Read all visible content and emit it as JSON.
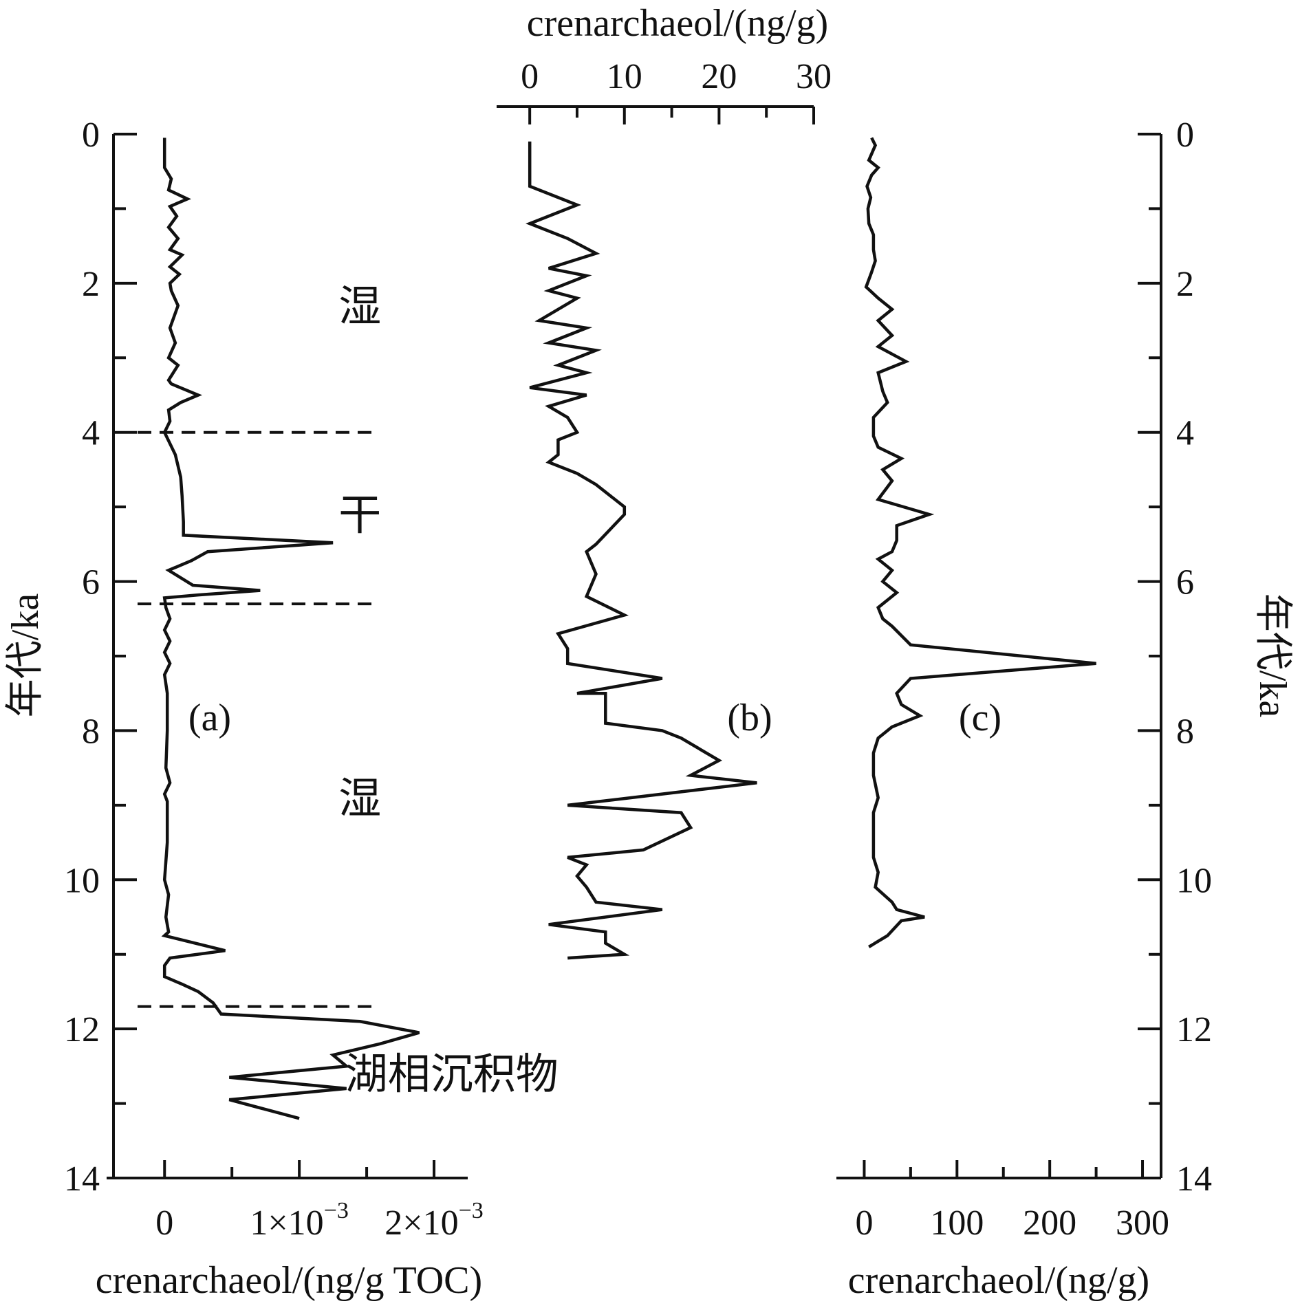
{
  "chart_data": [
    {
      "id": "a",
      "type": "line",
      "panel_label": "(a)",
      "xlabel": "crenarchaeol/(ng/g TOC)",
      "ylabel": "年代/ka",
      "xlim": [
        -0.00043,
        0.00225
      ],
      "ylim": [
        0,
        14
      ],
      "y_inverted": true,
      "x_ticks": [
        {
          "value": 0,
          "label": "0"
        },
        {
          "value": 0.001,
          "label": "1×10⁻³"
        },
        {
          "value": 0.002,
          "label": "2×10⁻³"
        }
      ],
      "y_ticks": [
        0,
        2,
        4,
        6,
        8,
        10,
        12,
        14
      ],
      "annotations": [
        {
          "text": "湿",
          "x": 0.00145,
          "y": 2.3
        },
        {
          "text": "干",
          "x": 0.00145,
          "y": 5.1
        },
        {
          "text": "湿",
          "x": 0.00145,
          "y": 8.9
        },
        {
          "text": "湖相沉积物",
          "x": 0.00157,
          "y": 12.6
        }
      ],
      "boundaries": [
        4.0,
        6.3,
        11.7
      ],
      "series": [
        {
          "points": [
            [
              0.0,
              0.05
            ],
            [
              0.0,
              0.45
            ],
            [
              5e-05,
              0.6
            ],
            [
              3e-05,
              0.75
            ],
            [
              0.00017,
              0.87
            ],
            [
              4e-05,
              0.97
            ],
            [
              9e-05,
              1.1
            ],
            [
              3e-05,
              1.25
            ],
            [
              0.0001,
              1.4
            ],
            [
              4e-05,
              1.55
            ],
            [
              0.00013,
              1.62
            ],
            [
              4e-05,
              1.78
            ],
            [
              0.00011,
              1.88
            ],
            [
              4e-05,
              2.0
            ],
            [
              5e-05,
              2.1
            ],
            [
              0.0001,
              2.3
            ],
            [
              4e-05,
              2.6
            ],
            [
              8e-05,
              2.8
            ],
            [
              3e-05,
              3.0
            ],
            [
              0.0001,
              3.1
            ],
            [
              3e-05,
              3.3
            ],
            [
              5e-05,
              3.35
            ],
            [
              0.00025,
              3.5
            ],
            [
              0.00012,
              3.6
            ],
            [
              3e-05,
              3.7
            ],
            [
              4e-05,
              3.85
            ],
            [
              0.0,
              4.0
            ],
            [
              8e-05,
              4.3
            ],
            [
              0.00012,
              4.6
            ],
            [
              0.00013,
              4.85
            ],
            [
              0.00014,
              5.2
            ],
            [
              0.00014,
              5.38
            ],
            [
              0.00125,
              5.48
            ],
            [
              0.00032,
              5.6
            ],
            [
              0.0002,
              5.72
            ],
            [
              3e-05,
              5.85
            ],
            [
              0.00021,
              6.05
            ],
            [
              0.00071,
              6.12
            ],
            [
              0.00025,
              6.18
            ],
            [
              0.0,
              6.22
            ],
            [
              1e-05,
              6.35
            ],
            [
              4e-05,
              6.5
            ],
            [
              0.0,
              6.65
            ],
            [
              4e-05,
              6.8
            ],
            [
              0.0,
              6.95
            ],
            [
              4e-05,
              7.1
            ],
            [
              0.0,
              7.25
            ],
            [
              2e-05,
              7.5
            ],
            [
              2e-05,
              8.0
            ],
            [
              1e-05,
              8.5
            ],
            [
              4e-05,
              8.7
            ],
            [
              0.0,
              8.85
            ],
            [
              2e-05,
              8.95
            ],
            [
              2e-05,
              9.5
            ],
            [
              0.0,
              10.0
            ],
            [
              3e-05,
              10.2
            ],
            [
              1e-05,
              10.5
            ],
            [
              3e-05,
              10.7
            ],
            [
              0.0,
              10.75
            ],
            [
              0.00045,
              10.95
            ],
            [
              4e-05,
              11.05
            ],
            [
              0.0,
              11.15
            ],
            [
              0.0,
              11.3
            ],
            [
              0.00013,
              11.4
            ],
            [
              0.00025,
              11.5
            ],
            [
              0.00036,
              11.65
            ],
            [
              0.00042,
              11.8
            ],
            [
              0.00145,
              11.9
            ],
            [
              0.00189,
              12.05
            ],
            [
              0.0016,
              12.2
            ],
            [
              0.00125,
              12.35
            ],
            [
              0.00135,
              12.5
            ],
            [
              0.00048,
              12.65
            ],
            [
              0.00135,
              12.8
            ],
            [
              0.00048,
              12.95
            ],
            [
              0.001,
              13.2
            ]
          ]
        }
      ]
    },
    {
      "id": "b",
      "type": "line",
      "panel_label": "(b)",
      "xlabel": "crenarchaeol/(ng/g)",
      "xlim": [
        -3.5,
        30
      ],
      "ylim": [
        0,
        14
      ],
      "y_inverted": true,
      "x_ticks": [
        {
          "value": 0,
          "label": "0"
        },
        {
          "value": 10,
          "label": "10"
        },
        {
          "value": 20,
          "label": "20"
        },
        {
          "value": 30,
          "label": "30"
        }
      ],
      "series": [
        {
          "points": [
            [
              0,
              0.1
            ],
            [
              0,
              0.7
            ],
            [
              5,
              0.95
            ],
            [
              0,
              1.2
            ],
            [
              4,
              1.4
            ],
            [
              7,
              1.6
            ],
            [
              2,
              1.8
            ],
            [
              6,
              1.9
            ],
            [
              2,
              2.1
            ],
            [
              5,
              2.2
            ],
            [
              1,
              2.5
            ],
            [
              6,
              2.6
            ],
            [
              2,
              2.8
            ],
            [
              7,
              2.9
            ],
            [
              3,
              3.1
            ],
            [
              6,
              3.2
            ],
            [
              0,
              3.4
            ],
            [
              6,
              3.5
            ],
            [
              2,
              3.65
            ],
            [
              4,
              3.8
            ],
            [
              5,
              4.0
            ],
            [
              3,
              4.1
            ],
            [
              3,
              4.3
            ],
            [
              2,
              4.4
            ],
            [
              5,
              4.55
            ],
            [
              7,
              4.7
            ],
            [
              10,
              5.0
            ],
            [
              10,
              5.1
            ],
            [
              7,
              5.5
            ],
            [
              6,
              5.6
            ],
            [
              7,
              5.9
            ],
            [
              6,
              6.2
            ],
            [
              10,
              6.45
            ],
            [
              3,
              6.7
            ],
            [
              4,
              6.9
            ],
            [
              4,
              7.1
            ],
            [
              14,
              7.3
            ],
            [
              5,
              7.5
            ],
            [
              8,
              7.5
            ],
            [
              8,
              7.9
            ],
            [
              14,
              8.0
            ],
            [
              16,
              8.1
            ],
            [
              20,
              8.4
            ],
            [
              17,
              8.6
            ],
            [
              24,
              8.7
            ],
            [
              4,
              9.0
            ],
            [
              16,
              9.1
            ],
            [
              17,
              9.3
            ],
            [
              12,
              9.6
            ],
            [
              4,
              9.7
            ],
            [
              6,
              9.8
            ],
            [
              5,
              9.95
            ],
            [
              6,
              10.1
            ],
            [
              7,
              10.3
            ],
            [
              14,
              10.4
            ],
            [
              2,
              10.6
            ],
            [
              8,
              10.7
            ],
            [
              8,
              10.85
            ],
            [
              10,
              11.0
            ],
            [
              4,
              11.05
            ]
          ]
        }
      ]
    },
    {
      "id": "c",
      "type": "line",
      "panel_label": "(c)",
      "xlabel": "crenarchaeol/(ng/g)",
      "ylabel": "年代/ka",
      "xlim": [
        -30,
        320
      ],
      "ylim": [
        0,
        14
      ],
      "y_inverted": true,
      "x_ticks": [
        {
          "value": 0,
          "label": "0"
        },
        {
          "value": 100,
          "label": "100"
        },
        {
          "value": 200,
          "label": "200"
        },
        {
          "value": 300,
          "label": "300"
        }
      ],
      "y_ticks": [
        0,
        2,
        4,
        6,
        8,
        10,
        12,
        14
      ],
      "series": [
        {
          "points": [
            [
              8,
              0.05
            ],
            [
              12,
              0.15
            ],
            [
              5,
              0.35
            ],
            [
              15,
              0.45
            ],
            [
              8,
              0.55
            ],
            [
              3,
              0.7
            ],
            [
              7,
              0.85
            ],
            [
              4,
              1.0
            ],
            [
              5,
              1.2
            ],
            [
              10,
              1.35
            ],
            [
              10,
              1.55
            ],
            [
              12,
              1.7
            ],
            [
              8,
              1.85
            ],
            [
              2,
              2.05
            ],
            [
              15,
              2.2
            ],
            [
              30,
              2.35
            ],
            [
              15,
              2.5
            ],
            [
              30,
              2.7
            ],
            [
              15,
              2.85
            ],
            [
              45,
              3.05
            ],
            [
              15,
              3.2
            ],
            [
              20,
              3.45
            ],
            [
              25,
              3.6
            ],
            [
              10,
              3.8
            ],
            [
              10,
              4.05
            ],
            [
              15,
              4.2
            ],
            [
              40,
              4.35
            ],
            [
              20,
              4.5
            ],
            [
              30,
              4.65
            ],
            [
              15,
              4.9
            ],
            [
              70,
              5.1
            ],
            [
              35,
              5.25
            ],
            [
              35,
              5.45
            ],
            [
              30,
              5.6
            ],
            [
              15,
              5.7
            ],
            [
              30,
              5.85
            ],
            [
              20,
              6.0
            ],
            [
              35,
              6.15
            ],
            [
              15,
              6.35
            ],
            [
              20,
              6.5
            ],
            [
              30,
              6.6
            ],
            [
              50,
              6.85
            ],
            [
              250,
              7.1
            ],
            [
              50,
              7.3
            ],
            [
              35,
              7.5
            ],
            [
              40,
              7.65
            ],
            [
              60,
              7.8
            ],
            [
              30,
              7.95
            ],
            [
              15,
              8.1
            ],
            [
              10,
              8.3
            ],
            [
              10,
              8.6
            ],
            [
              15,
              8.9
            ],
            [
              10,
              9.1
            ],
            [
              10,
              9.4
            ],
            [
              10,
              9.7
            ],
            [
              15,
              9.9
            ],
            [
              12,
              10.1
            ],
            [
              30,
              10.3
            ],
            [
              35,
              10.4
            ],
            [
              65,
              10.5
            ],
            [
              40,
              10.55
            ],
            [
              25,
              10.75
            ],
            [
              5,
              10.9
            ]
          ]
        }
      ]
    }
  ]
}
